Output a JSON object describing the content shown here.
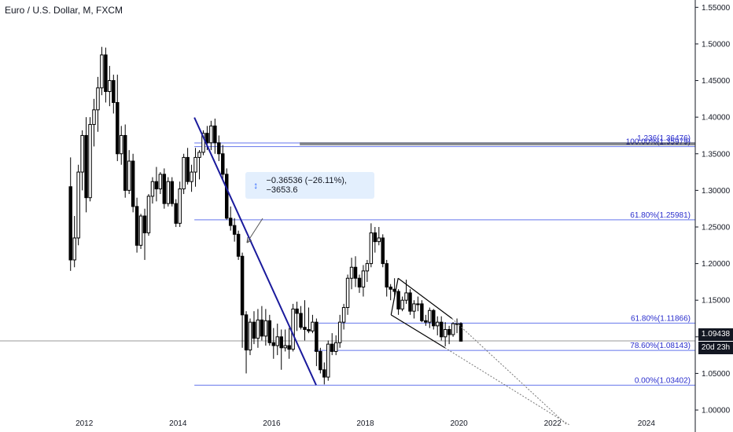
{
  "chart_data": {
    "type": "candlestick",
    "title": "Euro / U.S. Dollar, M, FXCM",
    "x_ticks": [
      "2012",
      "2014",
      "2016",
      "2018",
      "2020",
      "2022",
      "2024"
    ],
    "y_ticks": [
      "1.55000",
      "1.50000",
      "1.45000",
      "1.40000",
      "1.35000",
      "1.30000",
      "1.25000",
      "1.20000",
      "1.15000",
      "1.10000",
      "1.05000",
      "1.00000"
    ],
    "ylim": [
      0.97,
      1.56
    ],
    "xlim": [
      2010.2,
      2025.85
    ],
    "current_price": "1.09438",
    "countdown": "20d 23h",
    "measure_label": "−0.36536 (−26.11%), −3653.6",
    "fib_levels": [
      {
        "label": "1.236(1.36476)",
        "value": 1.36476,
        "x_start": 2014.35
      },
      {
        "label": "100.00%(1.35979)",
        "value": 1.35979,
        "x_start": 2014.35
      },
      {
        "label": "61.80%(1.25981)",
        "value": 1.25981,
        "x_start": 2014.35
      },
      {
        "label": "61.80%(1.11866)",
        "value": 1.11866,
        "x_start": 2017.0
      },
      {
        "label": "78.60%(1.08143)",
        "value": 1.08143,
        "x_start": 2016.9
      },
      {
        "label": "0.00%(1.03402)",
        "value": 1.03402,
        "x_start": 2014.35
      }
    ],
    "trendline": {
      "x1": 2014.35,
      "y1": 1.3995,
      "x2": 2016.95,
      "y2": 1.034
    },
    "channel": {
      "upper": [
        [
          2018.7,
          1.18
        ],
        [
          2019.85,
          1.125
        ]
      ],
      "lower": [
        [
          2018.55,
          1.13
        ],
        [
          2019.7,
          1.085
        ]
      ],
      "lower_ext_end": [
        2022.35,
        0.98
      ],
      "upper_ext_end": [
        2022.3,
        0.98
      ]
    },
    "candles": [
      {
        "o": 1.305,
        "h": 1.345,
        "l": 1.19,
        "c": 1.205
      },
      {
        "o": 1.205,
        "h": 1.265,
        "l": 1.195,
        "c": 1.235
      },
      {
        "o": 1.235,
        "h": 1.335,
        "l": 1.225,
        "c": 1.325
      },
      {
        "o": 1.325,
        "h": 1.382,
        "l": 1.3,
        "c": 1.375
      },
      {
        "o": 1.375,
        "h": 1.4,
        "l": 1.27,
        "c": 1.29
      },
      {
        "o": 1.29,
        "h": 1.4,
        "l": 1.285,
        "c": 1.39
      },
      {
        "o": 1.39,
        "h": 1.425,
        "l": 1.36,
        "c": 1.41
      },
      {
        "o": 1.41,
        "h": 1.455,
        "l": 1.38,
        "c": 1.44
      },
      {
        "o": 1.44,
        "h": 1.496,
        "l": 1.43,
        "c": 1.485
      },
      {
        "o": 1.485,
        "h": 1.495,
        "l": 1.42,
        "c": 1.435
      },
      {
        "o": 1.435,
        "h": 1.47,
        "l": 1.415,
        "c": 1.45
      },
      {
        "o": 1.45,
        "h": 1.458,
        "l": 1.405,
        "c": 1.42
      },
      {
        "o": 1.42,
        "h": 1.458,
        "l": 1.34,
        "c": 1.35
      },
      {
        "o": 1.35,
        "h": 1.388,
        "l": 1.335,
        "c": 1.375
      },
      {
        "o": 1.375,
        "h": 1.39,
        "l": 1.29,
        "c": 1.3
      },
      {
        "o": 1.3,
        "h": 1.355,
        "l": 1.295,
        "c": 1.34
      },
      {
        "o": 1.34,
        "h": 1.35,
        "l": 1.27,
        "c": 1.278
      },
      {
        "o": 1.278,
        "h": 1.29,
        "l": 1.215,
        "c": 1.225
      },
      {
        "o": 1.225,
        "h": 1.268,
        "l": 1.22,
        "c": 1.265
      },
      {
        "o": 1.265,
        "h": 1.275,
        "l": 1.205,
        "c": 1.242
      },
      {
        "o": 1.242,
        "h": 1.295,
        "l": 1.238,
        "c": 1.292
      },
      {
        "o": 1.292,
        "h": 1.318,
        "l": 1.282,
        "c": 1.312
      },
      {
        "o": 1.312,
        "h": 1.332,
        "l": 1.285,
        "c": 1.302
      },
      {
        "o": 1.302,
        "h": 1.325,
        "l": 1.295,
        "c": 1.322
      },
      {
        "o": 1.322,
        "h": 1.33,
        "l": 1.275,
        "c": 1.282
      },
      {
        "o": 1.282,
        "h": 1.318,
        "l": 1.278,
        "c": 1.312
      },
      {
        "o": 1.312,
        "h": 1.318,
        "l": 1.278,
        "c": 1.282
      },
      {
        "o": 1.282,
        "h": 1.288,
        "l": 1.25,
        "c": 1.255
      },
      {
        "o": 1.255,
        "h": 1.312,
        "l": 1.25,
        "c": 1.302
      },
      {
        "o": 1.302,
        "h": 1.35,
        "l": 1.295,
        "c": 1.345
      },
      {
        "o": 1.345,
        "h": 1.358,
        "l": 1.308,
        "c": 1.312
      },
      {
        "o": 1.312,
        "h": 1.335,
        "l": 1.298,
        "c": 1.325
      },
      {
        "o": 1.325,
        "h": 1.358,
        "l": 1.305,
        "c": 1.345
      },
      {
        "o": 1.345,
        "h": 1.355,
        "l": 1.315,
        "c": 1.352
      },
      {
        "o": 1.352,
        "h": 1.382,
        "l": 1.348,
        "c": 1.378
      },
      {
        "o": 1.378,
        "h": 1.388,
        "l": 1.355,
        "c": 1.365
      },
      {
        "o": 1.365,
        "h": 1.395,
        "l": 1.355,
        "c": 1.388
      },
      {
        "o": 1.388,
        "h": 1.398,
        "l": 1.35,
        "c": 1.365
      },
      {
        "o": 1.365,
        "h": 1.375,
        "l": 1.34,
        "c": 1.35
      },
      {
        "o": 1.35,
        "h": 1.362,
        "l": 1.315,
        "c": 1.322
      },
      {
        "o": 1.322,
        "h": 1.33,
        "l": 1.26,
        "c": 1.262
      },
      {
        "o": 1.262,
        "h": 1.278,
        "l": 1.245,
        "c": 1.252
      },
      {
        "o": 1.252,
        "h": 1.262,
        "l": 1.23,
        "c": 1.24
      },
      {
        "o": 1.24,
        "h": 1.245,
        "l": 1.205,
        "c": 1.21
      },
      {
        "o": 1.21,
        "h": 1.215,
        "l": 1.085,
        "c": 1.13
      },
      {
        "o": 1.13,
        "h": 1.135,
        "l": 1.05,
        "c": 1.082
      },
      {
        "o": 1.082,
        "h": 1.125,
        "l": 1.075,
        "c": 1.12
      },
      {
        "o": 1.12,
        "h": 1.135,
        "l": 1.09,
        "c": 1.098
      },
      {
        "o": 1.098,
        "h": 1.138,
        "l": 1.085,
        "c": 1.123
      },
      {
        "o": 1.123,
        "h": 1.142,
        "l": 1.095,
        "c": 1.101
      },
      {
        "o": 1.101,
        "h": 1.138,
        "l": 1.088,
        "c": 1.122
      },
      {
        "o": 1.122,
        "h": 1.13,
        "l": 1.088,
        "c": 1.092
      },
      {
        "o": 1.092,
        "h": 1.112,
        "l": 1.07,
        "c": 1.088
      },
      {
        "o": 1.088,
        "h": 1.118,
        "l": 1.075,
        "c": 1.1
      },
      {
        "o": 1.1,
        "h": 1.11,
        "l": 1.055,
        "c": 1.085
      },
      {
        "o": 1.085,
        "h": 1.11,
        "l": 1.08,
        "c": 1.088
      },
      {
        "o": 1.088,
        "h": 1.112,
        "l": 1.07,
        "c": 1.083
      },
      {
        "o": 1.083,
        "h": 1.145,
        "l": 1.08,
        "c": 1.138
      },
      {
        "o": 1.138,
        "h": 1.148,
        "l": 1.108,
        "c": 1.132
      },
      {
        "o": 1.132,
        "h": 1.142,
        "l": 1.11,
        "c": 1.113
      },
      {
        "o": 1.113,
        "h": 1.15,
        "l": 1.095,
        "c": 1.11
      },
      {
        "o": 1.11,
        "h": 1.14,
        "l": 1.105,
        "c": 1.108
      },
      {
        "o": 1.108,
        "h": 1.13,
        "l": 1.105,
        "c": 1.12
      },
      {
        "o": 1.12,
        "h": 1.125,
        "l": 1.06,
        "c": 1.08
      },
      {
        "o": 1.08,
        "h": 1.085,
        "l": 1.05,
        "c": 1.055
      },
      {
        "o": 1.055,
        "h": 1.065,
        "l": 1.035,
        "c": 1.045
      },
      {
        "o": 1.045,
        "h": 1.095,
        "l": 1.04,
        "c": 1.09
      },
      {
        "o": 1.09,
        "h": 1.105,
        "l": 1.075,
        "c": 1.08
      },
      {
        "o": 1.08,
        "h": 1.102,
        "l": 1.075,
        "c": 1.092
      },
      {
        "o": 1.092,
        "h": 1.13,
        "l": 1.085,
        "c": 1.12
      },
      {
        "o": 1.12,
        "h": 1.145,
        "l": 1.11,
        "c": 1.14
      },
      {
        "o": 1.14,
        "h": 1.185,
        "l": 1.13,
        "c": 1.18
      },
      {
        "o": 1.18,
        "h": 1.208,
        "l": 1.165,
        "c": 1.195
      },
      {
        "o": 1.195,
        "h": 1.21,
        "l": 1.168,
        "c": 1.18
      },
      {
        "o": 1.18,
        "h": 1.185,
        "l": 1.16,
        "c": 1.168
      },
      {
        "o": 1.168,
        "h": 1.198,
        "l": 1.155,
        "c": 1.19
      },
      {
        "o": 1.19,
        "h": 1.205,
        "l": 1.175,
        "c": 1.2
      },
      {
        "o": 1.2,
        "h": 1.255,
        "l": 1.195,
        "c": 1.242
      },
      {
        "o": 1.242,
        "h": 1.25,
        "l": 1.215,
        "c": 1.23
      },
      {
        "o": 1.23,
        "h": 1.25,
        "l": 1.225,
        "c": 1.235
      },
      {
        "o": 1.235,
        "h": 1.24,
        "l": 1.195,
        "c": 1.2
      },
      {
        "o": 1.2,
        "h": 1.205,
        "l": 1.155,
        "c": 1.168
      },
      {
        "o": 1.168,
        "h": 1.172,
        "l": 1.15,
        "c": 1.165
      },
      {
        "o": 1.165,
        "h": 1.18,
        "l": 1.155,
        "c": 1.162
      },
      {
        "o": 1.162,
        "h": 1.165,
        "l": 1.13,
        "c": 1.138
      },
      {
        "o": 1.138,
        "h": 1.155,
        "l": 1.135,
        "c": 1.15
      },
      {
        "o": 1.15,
        "h": 1.178,
        "l": 1.145,
        "c": 1.16
      },
      {
        "o": 1.16,
        "h": 1.165,
        "l": 1.13,
        "c": 1.135
      },
      {
        "o": 1.135,
        "h": 1.15,
        "l": 1.125,
        "c": 1.145
      },
      {
        "o": 1.145,
        "h": 1.155,
        "l": 1.135,
        "c": 1.145
      },
      {
        "o": 1.145,
        "h": 1.15,
        "l": 1.12,
        "c": 1.122
      },
      {
        "o": 1.122,
        "h": 1.13,
        "l": 1.115,
        "c": 1.12
      },
      {
        "o": 1.12,
        "h": 1.14,
        "l": 1.112,
        "c": 1.136
      },
      {
        "o": 1.136,
        "h": 1.138,
        "l": 1.11,
        "c": 1.115
      },
      {
        "o": 1.115,
        "h": 1.128,
        "l": 1.102,
        "c": 1.12
      },
      {
        "o": 1.12,
        "h": 1.128,
        "l": 1.095,
        "c": 1.1
      },
      {
        "o": 1.1,
        "h": 1.12,
        "l": 1.087,
        "c": 1.11
      },
      {
        "o": 1.11,
        "h": 1.115,
        "l": 1.09,
        "c": 1.103
      },
      {
        "o": 1.103,
        "h": 1.12,
        "l": 1.1,
        "c": 1.118
      },
      {
        "o": 1.118,
        "h": 1.125,
        "l": 1.105,
        "c": 1.118
      },
      {
        "o": 1.118,
        "h": 1.12,
        "l": 1.095,
        "c": 1.094
      }
    ],
    "colors": {
      "up": "#000000",
      "down": "#000000",
      "fib": "#6476ec",
      "fib_text": "#2a2ecd",
      "trend": "#1a1a9c",
      "channel": "#000000",
      "ext": "#777777"
    }
  }
}
